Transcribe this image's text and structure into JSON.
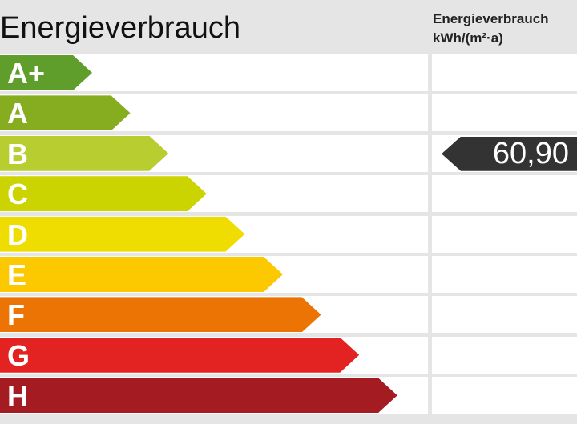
{
  "title": "Energieverbrauch",
  "unit_line1": "Energieverbrauch",
  "unit_line2": "kWh/(m²·a)",
  "classes": [
    {
      "label": "A+",
      "color": "#5f9e2a"
    },
    {
      "label": "A",
      "color": "#86ad1f"
    },
    {
      "label": "B",
      "color": "#b8cd30"
    },
    {
      "label": "C",
      "color": "#cbd300"
    },
    {
      "label": "D",
      "color": "#efdc00"
    },
    {
      "label": "E",
      "color": "#fcc800"
    },
    {
      "label": "F",
      "color": "#ec7404"
    },
    {
      "label": "G",
      "color": "#e32222"
    },
    {
      "label": "H",
      "color": "#a51b22"
    }
  ],
  "indicator": {
    "value": "60,90",
    "class": "B",
    "color": "#333333"
  }
}
